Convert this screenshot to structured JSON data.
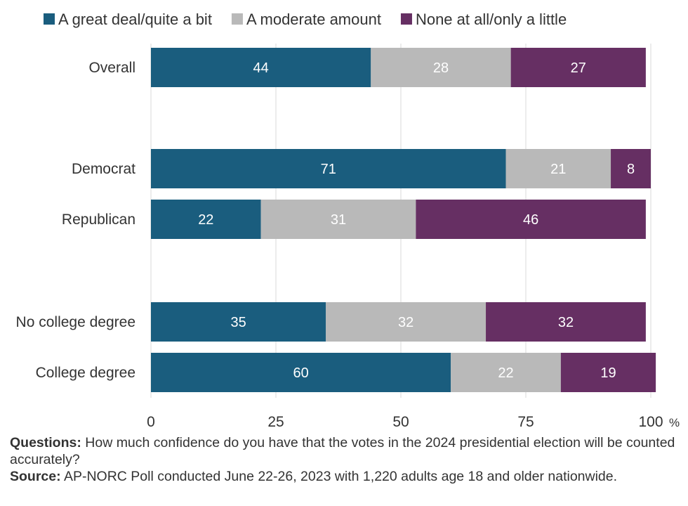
{
  "chart_data": {
    "type": "bar",
    "orientation": "horizontal",
    "stacked": true,
    "categories": [
      "Overall",
      "Democrat",
      "Republican",
      "No college degree",
      "College degree"
    ],
    "series": [
      {
        "name": "A great deal/quite a bit",
        "color": "#1a5d7e",
        "values": [
          44,
          71,
          22,
          35,
          60
        ]
      },
      {
        "name": "A moderate amount",
        "color": "#b9b9b9",
        "values": [
          28,
          21,
          31,
          32,
          22
        ]
      },
      {
        "name": "None at all/only a little",
        "color": "#662f63",
        "values": [
          27,
          8,
          46,
          32,
          19
        ]
      }
    ],
    "xlim": [
      0,
      100
    ],
    "xticks": [
      0,
      25,
      50,
      75,
      100
    ],
    "xtick_labels": [
      "0",
      "25",
      "50",
      "75",
      "100"
    ],
    "x_unit": "%",
    "legend_placement": "top",
    "grid": "vertical"
  },
  "notes": {
    "questions_label": "Questions:",
    "questions_text": " How much confidence do you have that the votes in the 2024 presidential election will be counted accurately?",
    "source_label": "Source:",
    "source_text": " AP-NORC Poll conducted June 22-26, 2023 with 1,220 adults age 18 and older nationwide."
  }
}
